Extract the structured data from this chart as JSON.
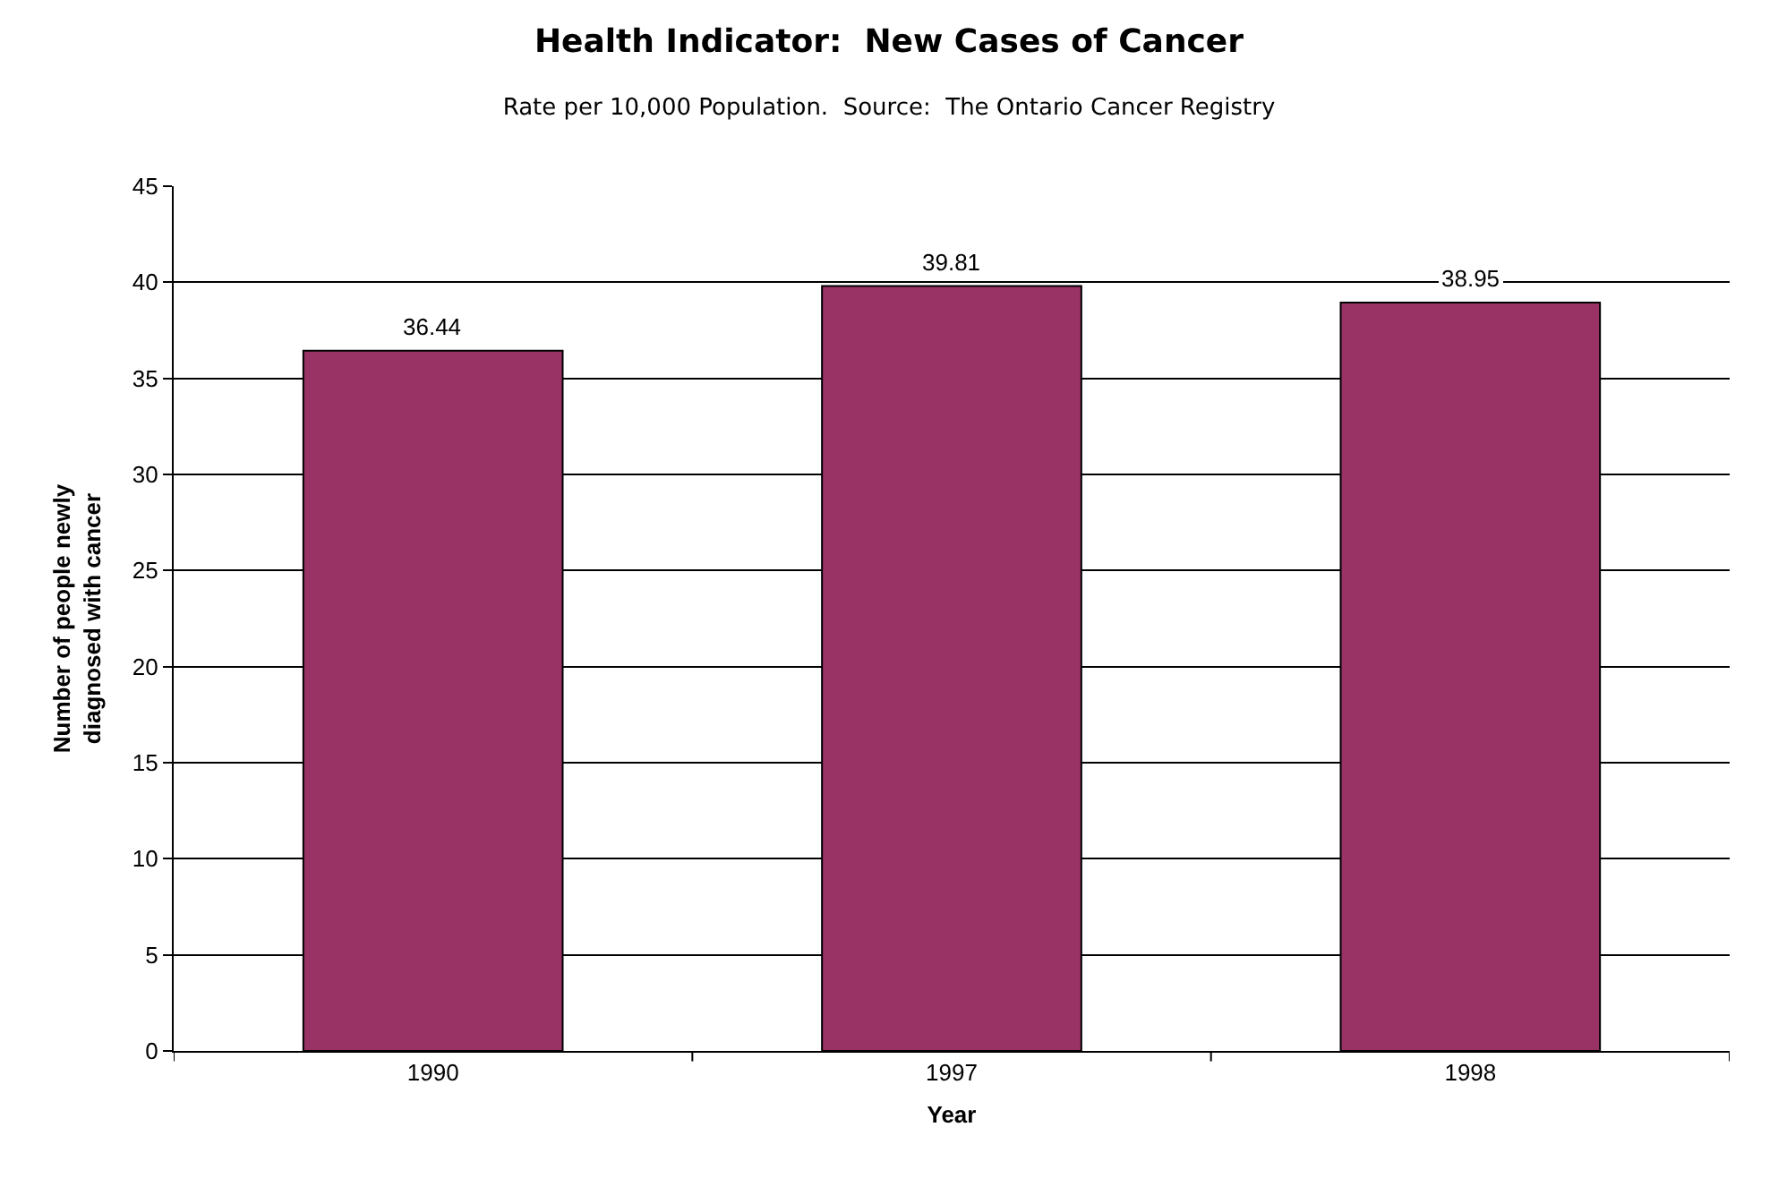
{
  "chart_data": {
    "type": "bar",
    "title": "Health Indicator:  New Cases of Cancer",
    "subtitle": "Rate per 10,000 Population.  Source:  The Ontario Cancer Registry",
    "xlabel": "Year",
    "ylabel": "Number of people newly diagnosed with cancer",
    "categories": [
      "1990",
      "1997",
      "1998"
    ],
    "values": [
      36.44,
      39.81,
      38.95
    ],
    "color": "#993366",
    "ylim": [
      0,
      45
    ],
    "yticks": [
      0,
      5,
      10,
      15,
      20,
      25,
      30,
      35,
      40,
      45
    ],
    "grid": "y",
    "data_labels": true
  }
}
